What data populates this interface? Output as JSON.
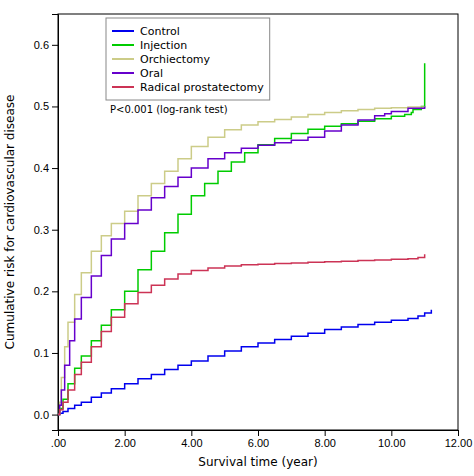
{
  "chart_data": {
    "type": "step",
    "xlabel": "Survival time (year)",
    "ylabel": "Cumulative risk for cardiovascular disease",
    "xlim": [
      0,
      12.0
    ],
    "ylim": [
      -0.025,
      0.65
    ],
    "xticks": [
      {
        "value": 0.0,
        "label": ".00"
      },
      {
        "value": 2.0,
        "label": "2.00"
      },
      {
        "value": 4.0,
        "label": "4.00"
      },
      {
        "value": 6.0,
        "label": "6.00"
      },
      {
        "value": 8.0,
        "label": "8.00"
      },
      {
        "value": 10.0,
        "label": "10.00"
      },
      {
        "value": 12.0,
        "label": "12.00"
      }
    ],
    "yticks": [
      {
        "value": 0.0,
        "label": "0.0"
      },
      0.1,
      0.2,
      0.3,
      0.4,
      0.5,
      0.6
    ],
    "grid": false,
    "legend": "top-left",
    "annotation": "P<0.001 (log-rank test)",
    "series": [
      {
        "name": "Control",
        "color": "#0000EE",
        "x": [
          0,
          0.05,
          0.15,
          0.3,
          0.5,
          0.7,
          1.0,
          1.3,
          1.6,
          2.0,
          2.4,
          2.8,
          3.2,
          3.6,
          4.0,
          4.5,
          5.0,
          5.5,
          6.0,
          6.5,
          7.0,
          7.5,
          8.0,
          8.5,
          9.0,
          9.5,
          10.0,
          10.5,
          10.8,
          11.0,
          11.2
        ],
        "values": [
          0.0,
          0.002,
          0.005,
          0.01,
          0.015,
          0.02,
          0.028,
          0.035,
          0.042,
          0.05,
          0.058,
          0.065,
          0.073,
          0.08,
          0.087,
          0.095,
          0.103,
          0.11,
          0.116,
          0.122,
          0.127,
          0.132,
          0.138,
          0.142,
          0.146,
          0.15,
          0.153,
          0.156,
          0.16,
          0.165,
          0.17
        ]
      },
      {
        "name": "Injection",
        "color": "#00CC00",
        "x": [
          0,
          0.05,
          0.15,
          0.3,
          0.5,
          0.7,
          1.0,
          1.3,
          1.6,
          2.0,
          2.4,
          2.8,
          3.2,
          3.6,
          4.0,
          4.4,
          4.8,
          5.2,
          5.6,
          6.0,
          6.5,
          7.0,
          7.5,
          8.0,
          8.5,
          9.0,
          9.5,
          10.0,
          10.4,
          10.6,
          10.65,
          10.9,
          11.0
        ],
        "values": [
          0.0,
          0.01,
          0.025,
          0.05,
          0.075,
          0.095,
          0.12,
          0.145,
          0.17,
          0.2,
          0.235,
          0.265,
          0.295,
          0.325,
          0.355,
          0.375,
          0.395,
          0.41,
          0.425,
          0.438,
          0.448,
          0.456,
          0.463,
          0.468,
          0.472,
          0.476,
          0.48,
          0.484,
          0.487,
          0.49,
          0.495,
          0.5,
          0.57
        ]
      },
      {
        "name": "Orchiectomy",
        "color": "#CCCC88",
        "x": [
          0,
          0.05,
          0.1,
          0.2,
          0.3,
          0.5,
          0.7,
          1.0,
          1.3,
          1.6,
          2.0,
          2.4,
          2.8,
          3.2,
          3.6,
          4.0,
          4.5,
          5.0,
          5.5,
          6.0,
          6.5,
          7.0,
          7.5,
          8.0,
          8.5,
          9.0,
          9.5,
          10.0,
          10.5,
          11.0
        ],
        "values": [
          0.0,
          0.02,
          0.06,
          0.11,
          0.15,
          0.195,
          0.23,
          0.265,
          0.29,
          0.31,
          0.33,
          0.355,
          0.375,
          0.395,
          0.415,
          0.435,
          0.45,
          0.462,
          0.47,
          0.475,
          0.479,
          0.483,
          0.487,
          0.49,
          0.493,
          0.495,
          0.497,
          0.498,
          0.499,
          0.5
        ]
      },
      {
        "name": "Oral",
        "color": "#6600CC",
        "x": [
          0,
          0.05,
          0.1,
          0.2,
          0.35,
          0.5,
          0.7,
          1.0,
          1.3,
          1.6,
          2.0,
          2.4,
          2.8,
          3.2,
          3.6,
          4.0,
          4.5,
          5.0,
          5.5,
          6.0,
          6.5,
          7.0,
          7.5,
          8.0,
          8.5,
          9.0,
          9.5,
          9.8,
          10.0,
          10.5,
          11.0
        ],
        "values": [
          0.0,
          0.015,
          0.04,
          0.08,
          0.12,
          0.155,
          0.19,
          0.225,
          0.258,
          0.285,
          0.31,
          0.332,
          0.352,
          0.37,
          0.385,
          0.4,
          0.415,
          0.425,
          0.432,
          0.437,
          0.441,
          0.445,
          0.45,
          0.46,
          0.47,
          0.478,
          0.485,
          0.488,
          0.492,
          0.497,
          0.5
        ]
      },
      {
        "name": "Radical prostatectomy",
        "color": "#CC3355",
        "x": [
          0,
          0.05,
          0.15,
          0.3,
          0.5,
          0.7,
          1.0,
          1.3,
          1.6,
          2.0,
          2.4,
          2.8,
          3.2,
          3.6,
          4.0,
          4.5,
          5.0,
          5.5,
          6.0,
          6.5,
          7.0,
          7.5,
          8.0,
          8.5,
          9.0,
          9.5,
          10.0,
          10.5,
          10.8,
          11.0
        ],
        "values": [
          0.0,
          0.008,
          0.02,
          0.04,
          0.065,
          0.085,
          0.11,
          0.135,
          0.158,
          0.18,
          0.198,
          0.21,
          0.22,
          0.228,
          0.234,
          0.238,
          0.241,
          0.243,
          0.244,
          0.245,
          0.246,
          0.247,
          0.248,
          0.249,
          0.25,
          0.251,
          0.252,
          0.253,
          0.255,
          0.26
        ]
      }
    ]
  }
}
